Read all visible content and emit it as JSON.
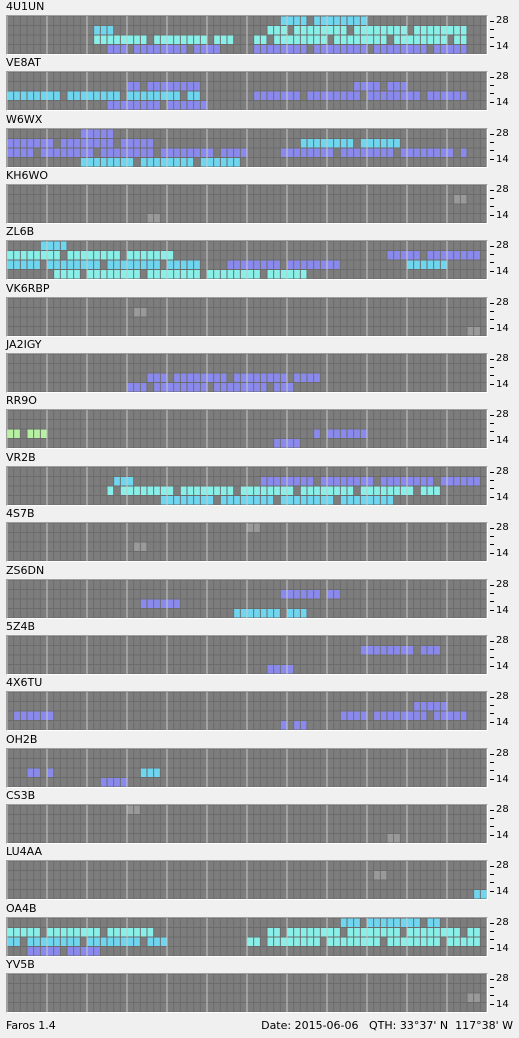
{
  "app": {
    "name": "Faros 1.4"
  },
  "status": {
    "date": "Date: 2015-06-06",
    "qth": "QTH: 33°37' N  117°38' W"
  },
  "scale": {
    "top_label": "28",
    "bottom_label": "14"
  },
  "colors": {
    "background": "#f0f0f0",
    "grid_bg": "#6b6b6b",
    "empty_cell": "#7d7d7d",
    "grid_line": "#c8c8c8",
    "weak": "#9a9a9a",
    "low": "#8a8aee",
    "mid": "#6fd6f0",
    "high": "#88f0e8",
    "peak": "#b6f0a0"
  },
  "stations": [
    {
      "label": "4U1UN",
      "activity": [
        {
          "row": 0,
          "from": 0.58,
          "to": 0.77,
          "level": "mid"
        },
        {
          "row": 1,
          "from": 0.55,
          "to": 0.96,
          "level": "high"
        },
        {
          "row": 1,
          "from": 0.19,
          "to": 0.22,
          "level": "mid"
        },
        {
          "row": 2,
          "from": 0.19,
          "to": 0.47,
          "level": "high"
        },
        {
          "row": 2,
          "from": 0.52,
          "to": 0.96,
          "level": "high"
        },
        {
          "row": 3,
          "from": 0.21,
          "to": 0.44,
          "level": "low"
        },
        {
          "row": 3,
          "from": 0.52,
          "to": 0.96,
          "level": "low"
        }
      ]
    },
    {
      "label": "VE8AT",
      "activity": [
        {
          "row": 1,
          "from": 0.25,
          "to": 0.4,
          "level": "low"
        },
        {
          "row": 1,
          "from": 0.73,
          "to": 0.84,
          "level": "low"
        },
        {
          "row": 2,
          "from": 0.01,
          "to": 0.4,
          "level": "mid"
        },
        {
          "row": 2,
          "from": 0.52,
          "to": 0.96,
          "level": "low"
        },
        {
          "row": 3,
          "from": 0.2,
          "to": 0.42,
          "level": "low"
        }
      ]
    },
    {
      "label": "W6WX",
      "activity": [
        {
          "row": 0,
          "from": 0.14,
          "to": 0.22,
          "level": "low"
        },
        {
          "row": 1,
          "from": 0.01,
          "to": 0.3,
          "level": "low"
        },
        {
          "row": 1,
          "from": 0.6,
          "to": 0.82,
          "level": "mid"
        },
        {
          "row": 2,
          "from": 0.01,
          "to": 0.5,
          "level": "low"
        },
        {
          "row": 2,
          "from": 0.58,
          "to": 0.96,
          "level": "low"
        },
        {
          "row": 3,
          "from": 0.15,
          "to": 0.49,
          "level": "mid"
        }
      ]
    },
    {
      "label": "KH6WO",
      "activity": [
        {
          "row": 3,
          "from": 0.3,
          "to": 0.32,
          "level": "weak"
        },
        {
          "row": 1,
          "from": 0.94,
          "to": 0.96,
          "level": "weak"
        }
      ]
    },
    {
      "label": "ZL6B",
      "activity": [
        {
          "row": 0,
          "from": 0.08,
          "to": 0.13,
          "level": "mid"
        },
        {
          "row": 1,
          "from": 0.01,
          "to": 0.35,
          "level": "high"
        },
        {
          "row": 1,
          "from": 0.8,
          "to": 0.98,
          "level": "low"
        },
        {
          "row": 2,
          "from": 0.01,
          "to": 0.4,
          "level": "mid"
        },
        {
          "row": 2,
          "from": 0.45,
          "to": 0.7,
          "level": "low"
        },
        {
          "row": 2,
          "from": 0.82,
          "to": 0.92,
          "level": "mid"
        },
        {
          "row": 3,
          "from": 0.1,
          "to": 0.62,
          "level": "high"
        }
      ]
    },
    {
      "label": "VK6RBP",
      "activity": [
        {
          "row": 1,
          "from": 0.27,
          "to": 0.29,
          "level": "weak"
        },
        {
          "row": 3,
          "from": 0.96,
          "to": 0.98,
          "level": "weak"
        }
      ]
    },
    {
      "label": "JA2IGY",
      "activity": [
        {
          "row": 2,
          "from": 0.3,
          "to": 0.65,
          "level": "low"
        },
        {
          "row": 3,
          "from": 0.25,
          "to": 0.6,
          "level": "low"
        }
      ]
    },
    {
      "label": "RR9O",
      "activity": [
        {
          "row": 2,
          "from": 0.01,
          "to": 0.08,
          "level": "peak"
        },
        {
          "row": 2,
          "from": 0.64,
          "to": 0.75,
          "level": "low"
        },
        {
          "row": 3,
          "from": 0.56,
          "to": 0.62,
          "level": "low"
        }
      ]
    },
    {
      "label": "VR2B",
      "activity": [
        {
          "row": 1,
          "from": 0.52,
          "to": 0.98,
          "level": "low"
        },
        {
          "row": 1,
          "from": 0.23,
          "to": 0.28,
          "level": "mid"
        },
        {
          "row": 2,
          "from": 0.22,
          "to": 0.9,
          "level": "high"
        },
        {
          "row": 3,
          "from": 0.33,
          "to": 0.82,
          "level": "mid"
        }
      ]
    },
    {
      "label": "4S7B",
      "activity": [
        {
          "row": 2,
          "from": 0.27,
          "to": 0.29,
          "level": "weak"
        },
        {
          "row": 0,
          "from": 0.51,
          "to": 0.53,
          "level": "weak"
        }
      ]
    },
    {
      "label": "ZS6DN",
      "activity": [
        {
          "row": 1,
          "from": 0.58,
          "to": 0.7,
          "level": "low"
        },
        {
          "row": 2,
          "from": 0.29,
          "to": 0.36,
          "level": "low"
        },
        {
          "row": 3,
          "from": 0.48,
          "to": 0.63,
          "level": "mid"
        }
      ]
    },
    {
      "label": "5Z4B",
      "activity": [
        {
          "row": 1,
          "from": 0.74,
          "to": 0.9,
          "level": "low"
        },
        {
          "row": 3,
          "from": 0.55,
          "to": 0.6,
          "level": "low"
        }
      ]
    },
    {
      "label": "4X6TU",
      "activity": [
        {
          "row": 1,
          "from": 0.86,
          "to": 0.93,
          "level": "low"
        },
        {
          "row": 2,
          "from": 0.01,
          "to": 0.1,
          "level": "low"
        },
        {
          "row": 2,
          "from": 0.7,
          "to": 0.96,
          "level": "low"
        },
        {
          "row": 3,
          "from": 0.58,
          "to": 0.63,
          "level": "low"
        }
      ]
    },
    {
      "label": "OH2B",
      "activity": [
        {
          "row": 2,
          "from": 0.05,
          "to": 0.1,
          "level": "low"
        },
        {
          "row": 2,
          "from": 0.28,
          "to": 0.32,
          "level": "mid"
        },
        {
          "row": 3,
          "from": 0.2,
          "to": 0.25,
          "level": "low"
        }
      ]
    },
    {
      "label": "CS3B",
      "activity": [
        {
          "row": 0,
          "from": 0.26,
          "to": 0.28,
          "level": "weak"
        },
        {
          "row": 3,
          "from": 0.8,
          "to": 0.82,
          "level": "weak"
        }
      ]
    },
    {
      "label": "LU4AA",
      "activity": [
        {
          "row": 3,
          "from": 0.98,
          "to": 1.0,
          "level": "mid"
        },
        {
          "row": 1,
          "from": 0.77,
          "to": 0.79,
          "level": "weak"
        }
      ]
    },
    {
      "label": "OA4B",
      "activity": [
        {
          "row": 0,
          "from": 0.7,
          "to": 0.9,
          "level": "mid"
        },
        {
          "row": 1,
          "from": 0.01,
          "to": 0.3,
          "level": "high"
        },
        {
          "row": 1,
          "from": 0.55,
          "to": 0.98,
          "level": "high"
        },
        {
          "row": 2,
          "from": 0.01,
          "to": 0.34,
          "level": "mid"
        },
        {
          "row": 2,
          "from": 0.5,
          "to": 0.98,
          "level": "high"
        },
        {
          "row": 3,
          "from": 0.05,
          "to": 0.2,
          "level": "low"
        }
      ]
    },
    {
      "label": "YV5B",
      "activity": [
        {
          "row": 2,
          "from": 0.96,
          "to": 0.98,
          "level": "weak"
        }
      ]
    }
  ]
}
